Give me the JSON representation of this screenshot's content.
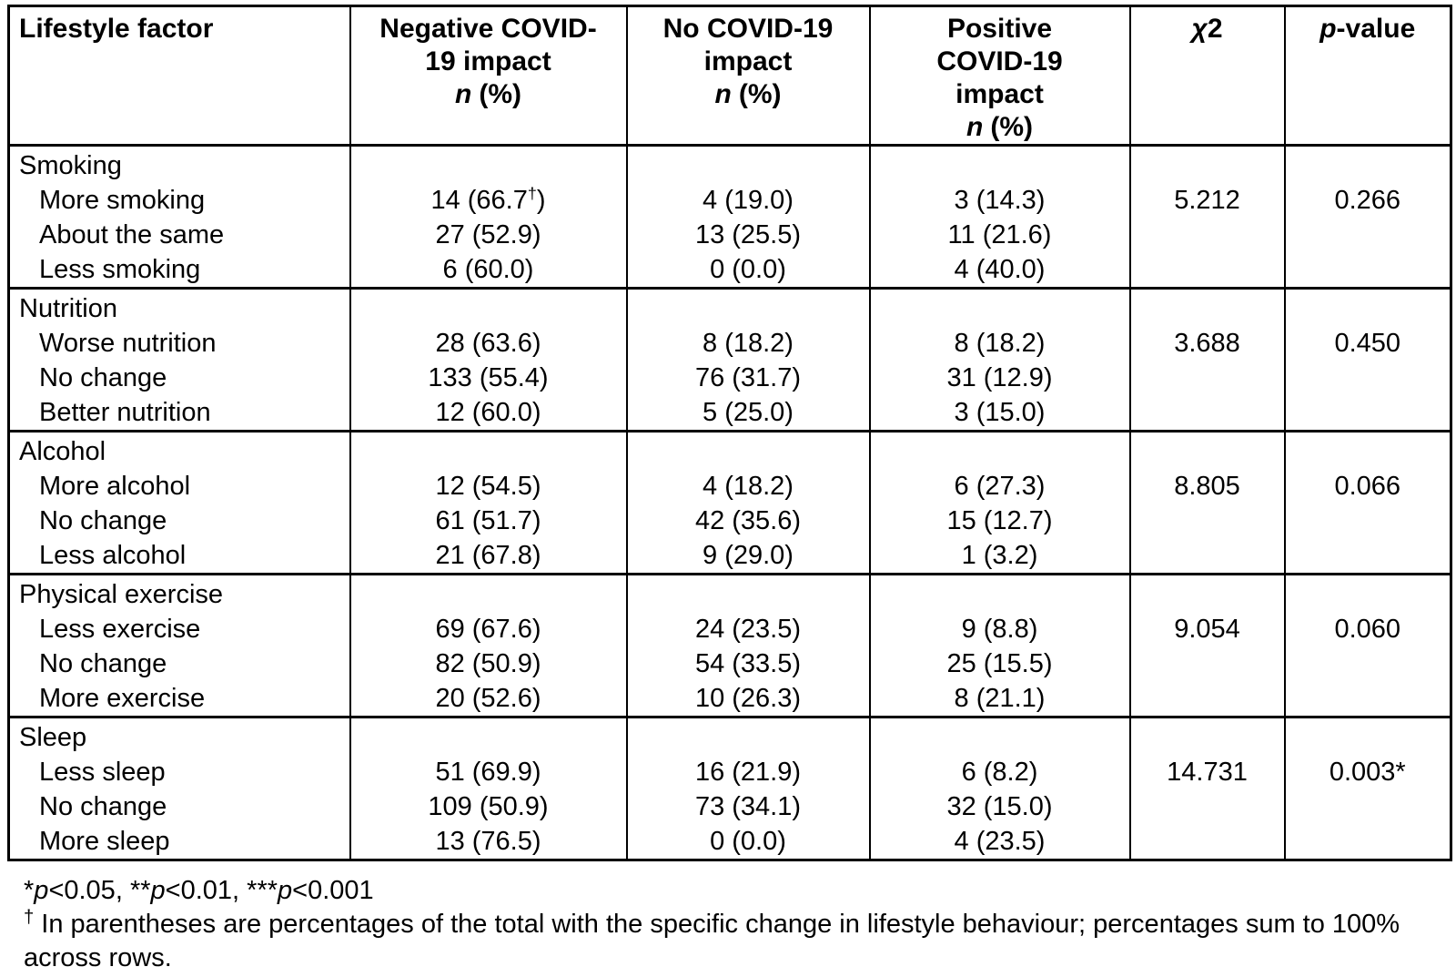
{
  "table": {
    "n_label": "n",
    "pct_label": "(%)",
    "chi": {
      "sym": "χ",
      "num": "2"
    },
    "pvalue": {
      "sym": "p",
      "rest": "-value"
    },
    "columns": [
      {
        "label": "Lifestyle factor"
      },
      {
        "lines": [
          "Negative COVID-",
          "19 impact"
        ]
      },
      {
        "lines": [
          "No COVID-19",
          "impact"
        ]
      },
      {
        "lines": [
          "Positive",
          "COVID-19",
          "impact"
        ]
      }
    ],
    "sections": [
      {
        "group": "Smoking",
        "chi2": "5.212",
        "p": "0.266",
        "rows": [
          {
            "label": "More smoking",
            "negative": "14 (66.7†)",
            "none": "4 (19.0)",
            "positive": "3 (14.3)"
          },
          {
            "label": "About the same",
            "negative": "27 (52.9)",
            "none": "13 (25.5)",
            "positive": "11 (21.6)"
          },
          {
            "label": "Less smoking",
            "negative": "6 (60.0)",
            "none": "0 (0.0)",
            "positive": "4 (40.0)"
          }
        ]
      },
      {
        "group": "Nutrition",
        "chi2": "3.688",
        "p": "0.450",
        "rows": [
          {
            "label": "Worse nutrition",
            "negative": "28 (63.6)",
            "none": "8 (18.2)",
            "positive": "8 (18.2)"
          },
          {
            "label": "No change",
            "negative": "133 (55.4)",
            "none": "76 (31.7)",
            "positive": "31 (12.9)"
          },
          {
            "label": "Better nutrition",
            "negative": "12 (60.0)",
            "none": "5 (25.0)",
            "positive": "3 (15.0)"
          }
        ]
      },
      {
        "group": "Alcohol",
        "chi2": "8.805",
        "p": "0.066",
        "rows": [
          {
            "label": "More alcohol",
            "negative": "12 (54.5)",
            "none": "4 (18.2)",
            "positive": "6 (27.3)"
          },
          {
            "label": "No change",
            "negative": "61 (51.7)",
            "none": "42 (35.6)",
            "positive": "15 (12.7)"
          },
          {
            "label": "Less alcohol",
            "negative": "21 (67.8)",
            "none": "9 (29.0)",
            "positive": "1 (3.2)"
          }
        ]
      },
      {
        "group": "Physical exercise",
        "chi2": "9.054",
        "p": "0.060",
        "rows": [
          {
            "label": "Less exercise",
            "negative": "69 (67.6)",
            "none": "24 (23.5)",
            "positive": "9 (8.8)"
          },
          {
            "label": "No change",
            "negative": "82 (50.9)",
            "none": "54 (33.5)",
            "positive": "25 (15.5)"
          },
          {
            "label": "More exercise",
            "negative": "20 (52.6)",
            "none": "10 (26.3)",
            "positive": "8 (21.1)"
          }
        ]
      },
      {
        "group": "Sleep",
        "chi2": "14.731",
        "p": "0.003*",
        "rows": [
          {
            "label": "Less sleep",
            "negative": "51 (69.9)",
            "none": "16 (21.9)",
            "positive": "6 (8.2)"
          },
          {
            "label": "No change",
            "negative": "109 (50.9)",
            "none": "73 (34.1)",
            "positive": "32 (15.0)"
          },
          {
            "label": "More sleep",
            "negative": "13 (76.5)",
            "none": "0 (0.0)",
            "positive": "4 (23.5)"
          }
        ]
      }
    ]
  },
  "footnotes": {
    "sig": {
      "a1": "*",
      "p": "p",
      "v1": "<0.05, ",
      "a2": "**",
      "v2": "<0.01, ",
      "a3": "***",
      "v3": "<0.001"
    },
    "dagger_mark": "†",
    "dagger_text": "In parentheses are percentages of the total with the specific change in lifestyle behaviour; percentages sum to 100% across rows."
  }
}
